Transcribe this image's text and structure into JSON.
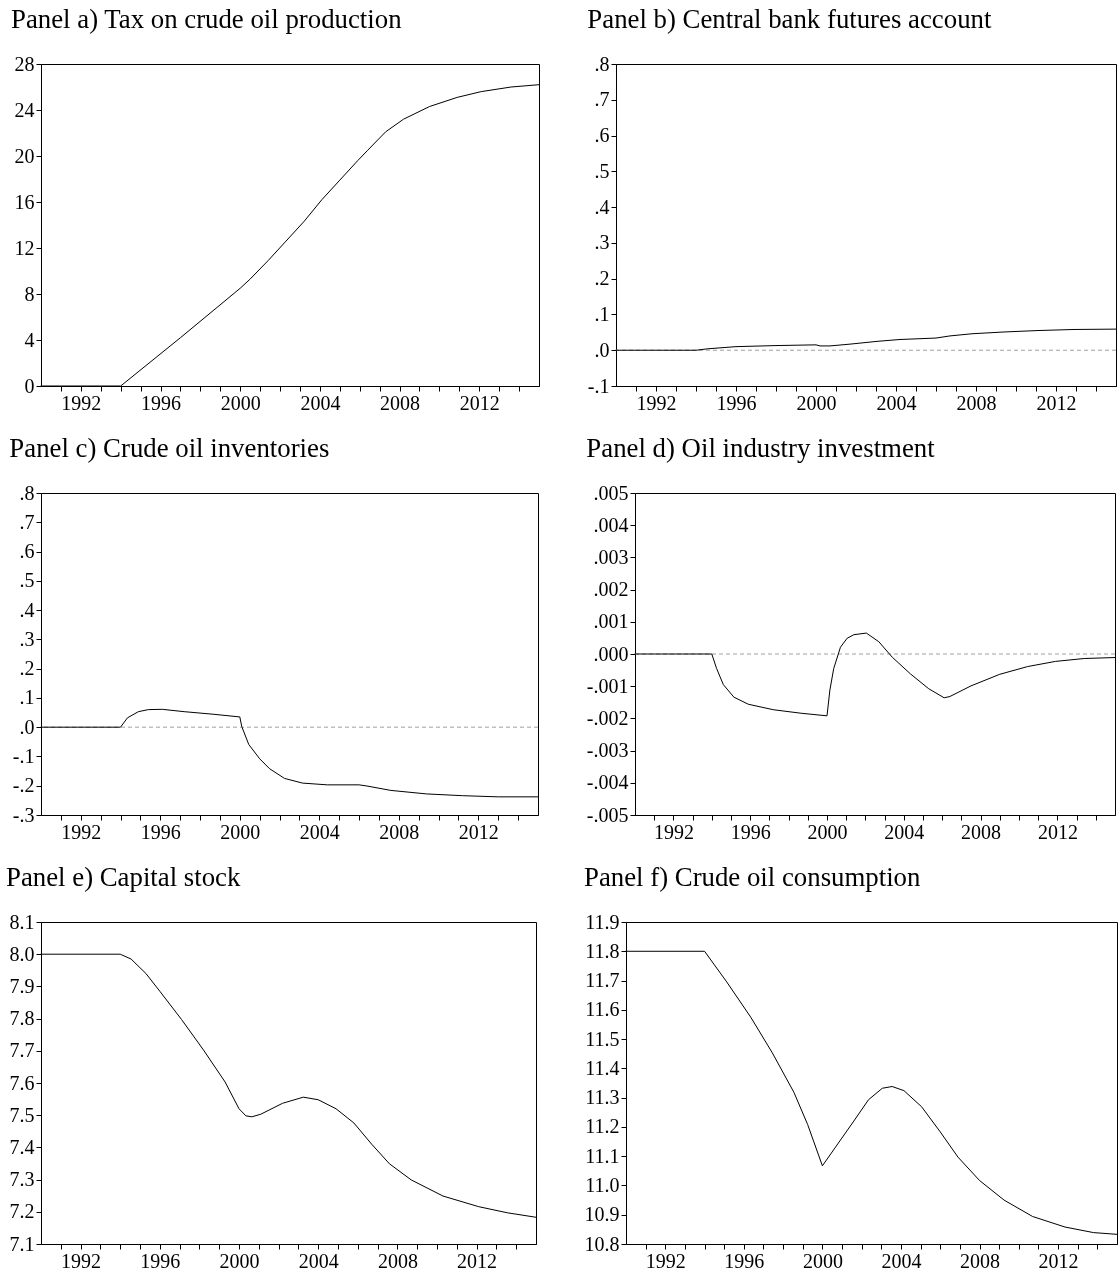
{
  "chart_data": [
    {
      "type": "line",
      "title": "Panel a) Tax on crude oil production",
      "x": [
        1990,
        1994,
        1997,
        2000,
        2000.5,
        2001.4,
        2002.3,
        2003.2,
        2004.1,
        2005,
        2005.9,
        2006.4,
        2007.3,
        2008.2,
        2009.5,
        2010.9,
        2012.1,
        2013.6,
        2015
      ],
      "series": [
        {
          "color": "#000000",
          "values": [
            0,
            0,
            4.2,
            8.5,
            9.3,
            10.9,
            12.6,
            14.3,
            16.2,
            17.9,
            19.6,
            20.5,
            22.1,
            23.2,
            24.3,
            25.1,
            25.6,
            26.0,
            26.2
          ]
        }
      ],
      "xlim": [
        1990,
        2015
      ],
      "xticks": [
        {
          "value": 1991,
          "label": null
        },
        1992,
        {
          "value": 1993,
          "label": null
        },
        {
          "value": 1994,
          "label": null
        },
        {
          "value": 1995,
          "label": null
        },
        1996,
        {
          "value": 1997,
          "label": null
        },
        {
          "value": 1998,
          "label": null
        },
        {
          "value": 1999,
          "label": null
        },
        2000,
        {
          "value": 2001,
          "label": null
        },
        {
          "value": 2002,
          "label": null
        },
        {
          "value": 2003,
          "label": null
        },
        2004,
        {
          "value": 2005,
          "label": null
        },
        {
          "value": 2006,
          "label": null
        },
        {
          "value": 2007,
          "label": null
        },
        2008,
        {
          "value": 2009,
          "label": null
        },
        {
          "value": 2010,
          "label": null
        },
        {
          "value": 2011,
          "label": null
        },
        2012,
        {
          "value": 2013,
          "label": null
        },
        {
          "value": 2014,
          "label": null
        }
      ],
      "ylim": [
        0,
        28
      ],
      "yticks": [
        0,
        4,
        8,
        12,
        16,
        20,
        24,
        28
      ]
    },
    {
      "type": "line",
      "title": "Panel b) Central bank futures account",
      "x": [
        1990,
        1994,
        1994.6,
        1996,
        1998,
        2000,
        2000.2,
        2000.7,
        2001.7,
        2003.1,
        2004.2,
        2006,
        2006.7,
        2007.8,
        2009.4,
        2011.1,
        2012.9,
        2015
      ],
      "series": [
        {
          "color": "#000000",
          "values": [
            0,
            0,
            0.004,
            0.01,
            0.013,
            0.015,
            0.012,
            0.012,
            0.017,
            0.025,
            0.03,
            0.034,
            0.04,
            0.046,
            0.051,
            0.055,
            0.058,
            0.059
          ]
        }
      ],
      "xlim": [
        1990,
        2015
      ],
      "xticks": [
        {
          "value": 1991,
          "label": null
        },
        1992,
        {
          "value": 1993,
          "label": null
        },
        {
          "value": 1994,
          "label": null
        },
        {
          "value": 1995,
          "label": null
        },
        1996,
        {
          "value": 1997,
          "label": null
        },
        {
          "value": 1998,
          "label": null
        },
        {
          "value": 1999,
          "label": null
        },
        2000,
        {
          "value": 2001,
          "label": null
        },
        {
          "value": 2002,
          "label": null
        },
        {
          "value": 2003,
          "label": null
        },
        2004,
        {
          "value": 2005,
          "label": null
        },
        {
          "value": 2006,
          "label": null
        },
        {
          "value": 2007,
          "label": null
        },
        2008,
        {
          "value": 2009,
          "label": null
        },
        {
          "value": 2010,
          "label": null
        },
        {
          "value": 2011,
          "label": null
        },
        2012,
        {
          "value": 2013,
          "label": null
        },
        {
          "value": 2014,
          "label": null
        }
      ],
      "ylim": [
        -0.1,
        0.8
      ],
      "yticks": [
        {
          "value": -0.1,
          "label": "-.1"
        },
        {
          "value": 0,
          "label": ".0"
        },
        {
          "value": 0.1,
          "label": ".1"
        },
        {
          "value": 0.2,
          "label": ".2"
        },
        {
          "value": 0.3,
          "label": ".3"
        },
        {
          "value": 0.4,
          "label": ".4"
        },
        {
          "value": 0.5,
          "label": ".5"
        },
        {
          "value": 0.6,
          "label": ".6"
        },
        {
          "value": 0.7,
          "label": ".7"
        },
        {
          "value": 0.8,
          "label": ".8"
        }
      ],
      "ref_lines": [
        {
          "axis": "y",
          "value": 0,
          "color": "#a0a0a0",
          "line_style": "dashed"
        }
      ]
    },
    {
      "type": "line",
      "title": "Panel c) Crude oil inventories",
      "x": [
        1990,
        1994,
        1994.35,
        1994.9,
        1995.4,
        1996.1,
        1997.2,
        1998.7,
        2000,
        2000.1,
        2000.45,
        2001,
        2001.5,
        2002.25,
        2003.15,
        2004.4,
        2006,
        2006.4,
        2007.6,
        2009.4,
        2011.2,
        2013,
        2015
      ],
      "series": [
        {
          "color": "#000000",
          "values": [
            0,
            0,
            0.032,
            0.053,
            0.06,
            0.061,
            0.053,
            0.044,
            0.035,
            0.002,
            -0.059,
            -0.108,
            -0.142,
            -0.175,
            -0.191,
            -0.197,
            -0.197,
            -0.201,
            -0.216,
            -0.228,
            -0.234,
            -0.238,
            -0.238
          ]
        }
      ],
      "xlim": [
        1990,
        2015
      ],
      "xticks": [
        {
          "value": 1991,
          "label": null
        },
        1992,
        {
          "value": 1993,
          "label": null
        },
        {
          "value": 1994,
          "label": null
        },
        {
          "value": 1995,
          "label": null
        },
        1996,
        {
          "value": 1997,
          "label": null
        },
        {
          "value": 1998,
          "label": null
        },
        {
          "value": 1999,
          "label": null
        },
        2000,
        {
          "value": 2001,
          "label": null
        },
        {
          "value": 2002,
          "label": null
        },
        {
          "value": 2003,
          "label": null
        },
        2004,
        {
          "value": 2005,
          "label": null
        },
        {
          "value": 2006,
          "label": null
        },
        {
          "value": 2007,
          "label": null
        },
        2008,
        {
          "value": 2009,
          "label": null
        },
        {
          "value": 2010,
          "label": null
        },
        {
          "value": 2011,
          "label": null
        },
        2012,
        {
          "value": 2013,
          "label": null
        },
        {
          "value": 2014,
          "label": null
        }
      ],
      "ylim": [
        -0.3,
        0.8
      ],
      "yticks": [
        {
          "value": -0.3,
          "label": "-.3"
        },
        {
          "value": -0.2,
          "label": "-.2"
        },
        {
          "value": -0.1,
          "label": "-.1"
        },
        {
          "value": 0,
          "label": ".0"
        },
        {
          "value": 0.1,
          "label": ".1"
        },
        {
          "value": 0.2,
          "label": ".2"
        },
        {
          "value": 0.3,
          "label": ".3"
        },
        {
          "value": 0.4,
          "label": ".4"
        },
        {
          "value": 0.5,
          "label": ".5"
        },
        {
          "value": 0.6,
          "label": ".6"
        },
        {
          "value": 0.7,
          "label": ".7"
        },
        {
          "value": 0.8,
          "label": ".8"
        }
      ],
      "ref_lines": [
        {
          "axis": "y",
          "value": 0,
          "color": "#a0a0a0",
          "line_style": "dashed"
        }
      ]
    },
    {
      "type": "line",
      "title": "Panel d) Oil industry investment",
      "x": [
        1990,
        1994,
        1994.25,
        1994.6,
        1995.15,
        1995.9,
        1997.2,
        1998.65,
        2000,
        2000.15,
        2000.35,
        2000.7,
        2001.05,
        2001.4,
        2002.05,
        2002.7,
        2003.4,
        2004.35,
        2005.3,
        2006.1,
        2006.4,
        2007.5,
        2009,
        2010.45,
        2011.9,
        2013.4,
        2015
      ],
      "series": [
        {
          "color": "#000000",
          "values": [
            0,
            0,
            -0.00045,
            -0.00095,
            -0.00134,
            -0.00156,
            -0.00173,
            -0.00184,
            -0.00192,
            -0.00112,
            -0.00045,
            0.00021,
            0.00049,
            0.0006,
            0.00065,
            0.00038,
            -0.0001,
            -0.00062,
            -0.00108,
            -0.00136,
            -0.00132,
            -0.00099,
            -0.00063,
            -0.00039,
            -0.00023,
            -0.00014,
            -0.00011
          ]
        }
      ],
      "xlim": [
        1990,
        2015
      ],
      "xticks": [
        {
          "value": 1991,
          "label": null
        },
        1992,
        {
          "value": 1993,
          "label": null
        },
        {
          "value": 1994,
          "label": null
        },
        {
          "value": 1995,
          "label": null
        },
        1996,
        {
          "value": 1997,
          "label": null
        },
        {
          "value": 1998,
          "label": null
        },
        {
          "value": 1999,
          "label": null
        },
        2000,
        {
          "value": 2001,
          "label": null
        },
        {
          "value": 2002,
          "label": null
        },
        {
          "value": 2003,
          "label": null
        },
        2004,
        {
          "value": 2005,
          "label": null
        },
        {
          "value": 2006,
          "label": null
        },
        {
          "value": 2007,
          "label": null
        },
        2008,
        {
          "value": 2009,
          "label": null
        },
        {
          "value": 2010,
          "label": null
        },
        {
          "value": 2011,
          "label": null
        },
        2012,
        {
          "value": 2013,
          "label": null
        },
        {
          "value": 2014,
          "label": null
        }
      ],
      "ylim": [
        -0.005,
        0.005
      ],
      "yticks": [
        {
          "value": -0.005,
          "label": "-.005"
        },
        {
          "value": -0.004,
          "label": "-.004"
        },
        {
          "value": -0.003,
          "label": "-.003"
        },
        {
          "value": -0.002,
          "label": "-.002"
        },
        {
          "value": -0.001,
          "label": "-.001"
        },
        {
          "value": 0,
          "label": ".000"
        },
        {
          "value": 0.001,
          "label": ".001"
        },
        {
          "value": 0.002,
          "label": ".002"
        },
        {
          "value": 0.003,
          "label": ".003"
        },
        {
          "value": 0.004,
          "label": ".004"
        },
        {
          "value": 0.005,
          "label": ".005"
        }
      ],
      "ref_lines": [
        {
          "axis": "y",
          "value": 0,
          "color": "#a0a0a0",
          "line_style": "dashed"
        }
      ]
    },
    {
      "type": "line",
      "title": "Panel e) Capital stock",
      "x": [
        1990,
        1994,
        1994.55,
        1995.3,
        1996,
        1997.1,
        1998.2,
        1999.3,
        2000,
        2000.35,
        2000.65,
        2001.1,
        2002.2,
        2003.25,
        2004,
        2004.9,
        2005.8,
        2006.7,
        2007.6,
        2008.7,
        2010.3,
        2012.1,
        2013.55,
        2015
      ],
      "series": [
        {
          "color": "#000000",
          "values": [
            8.0,
            8.0,
            7.985,
            7.94,
            7.885,
            7.797,
            7.703,
            7.603,
            7.52,
            7.498,
            7.495,
            7.503,
            7.537,
            7.556,
            7.548,
            7.52,
            7.476,
            7.41,
            7.349,
            7.299,
            7.249,
            7.216,
            7.197,
            7.183
          ]
        }
      ],
      "xlim": [
        1990,
        2015
      ],
      "xticks": [
        {
          "value": 1991,
          "label": null
        },
        1992,
        {
          "value": 1993,
          "label": null
        },
        {
          "value": 1994,
          "label": null
        },
        {
          "value": 1995,
          "label": null
        },
        1996,
        {
          "value": 1997,
          "label": null
        },
        {
          "value": 1998,
          "label": null
        },
        {
          "value": 1999,
          "label": null
        },
        2000,
        {
          "value": 2001,
          "label": null
        },
        {
          "value": 2002,
          "label": null
        },
        {
          "value": 2003,
          "label": null
        },
        2004,
        {
          "value": 2005,
          "label": null
        },
        {
          "value": 2006,
          "label": null
        },
        {
          "value": 2007,
          "label": null
        },
        2008,
        {
          "value": 2009,
          "label": null
        },
        {
          "value": 2010,
          "label": null
        },
        {
          "value": 2011,
          "label": null
        },
        2012,
        {
          "value": 2013,
          "label": null
        },
        {
          "value": 2014,
          "label": null
        }
      ],
      "ylim": [
        7.1,
        8.1
      ],
      "yticks": [
        7.1,
        7.2,
        7.3,
        7.4,
        7.5,
        7.6,
        7.7,
        7.8,
        7.9,
        {
          "value": 8,
          "label": "8.0"
        },
        8.1
      ]
    },
    {
      "type": "line",
      "title": "Panel f) Crude oil consumption",
      "x": [
        1990,
        1994,
        1995.1,
        1996.35,
        1997.45,
        1998.55,
        1999.25,
        2000,
        2000.7,
        2001.6,
        2002.35,
        2003.05,
        2003.55,
        2004.15,
        2005.05,
        2006,
        2006.9,
        2008,
        2009.25,
        2010.7,
        2012.35,
        2013.8,
        2015
      ],
      "series": [
        {
          "color": "#000000",
          "values": [
            11.8,
            11.8,
            11.698,
            11.575,
            11.453,
            11.318,
            11.208,
            11.067,
            11.134,
            11.22,
            11.293,
            11.332,
            11.338,
            11.324,
            11.269,
            11.183,
            11.097,
            11.017,
            10.95,
            10.894,
            10.858,
            10.839,
            10.833
          ]
        }
      ],
      "xlim": [
        1990,
        2015
      ],
      "xticks": [
        {
          "value": 1991,
          "label": null
        },
        1992,
        {
          "value": 1993,
          "label": null
        },
        {
          "value": 1994,
          "label": null
        },
        {
          "value": 1995,
          "label": null
        },
        1996,
        {
          "value": 1997,
          "label": null
        },
        {
          "value": 1998,
          "label": null
        },
        {
          "value": 1999,
          "label": null
        },
        2000,
        {
          "value": 2001,
          "label": null
        },
        {
          "value": 2002,
          "label": null
        },
        {
          "value": 2003,
          "label": null
        },
        2004,
        {
          "value": 2005,
          "label": null
        },
        {
          "value": 2006,
          "label": null
        },
        {
          "value": 2007,
          "label": null
        },
        2008,
        {
          "value": 2009,
          "label": null
        },
        {
          "value": 2010,
          "label": null
        },
        {
          "value": 2011,
          "label": null
        },
        2012,
        {
          "value": 2013,
          "label": null
        },
        {
          "value": 2014,
          "label": null
        }
      ],
      "ylim": [
        10.8,
        11.9
      ],
      "yticks": [
        10.8,
        10.9,
        {
          "value": 11,
          "label": "11.0"
        },
        11.1,
        11.2,
        11.3,
        11.4,
        11.5,
        11.6,
        11.7,
        11.8,
        11.9
      ]
    }
  ]
}
